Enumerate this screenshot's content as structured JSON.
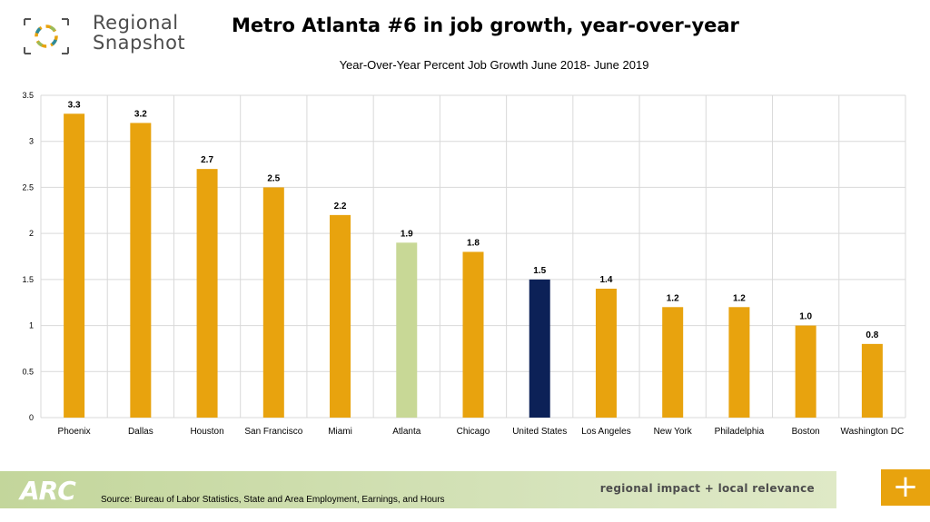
{
  "header": {
    "logo_text": "Regional\nSnapshot",
    "title": "Metro Atlanta #6 in job growth, year-over-year"
  },
  "footer": {
    "arc_logo": "ARC",
    "source": "Source: Bureau of Labor Statistics, State and Area Employment, Earnings, and Hours",
    "tagline": "regional impact + local relevance",
    "plus_icon": "+"
  },
  "colors": {
    "default_bar": "#e8a30e",
    "atlanta_bar": "#c8d896",
    "us_bar": "#0c2157",
    "grid": "#d9d9d9"
  },
  "chart_data": {
    "type": "bar",
    "title": "Year-Over-Year Percent Job Growth June 2018- June 2019",
    "categories": [
      "Phoenix",
      "Dallas",
      "Houston",
      "San Francisco",
      "Miami",
      "Atlanta",
      "Chicago",
      "United States",
      "Los Angeles",
      "New York",
      "Philadelphia",
      "Boston",
      "Washington DC"
    ],
    "values": [
      3.3,
      3.2,
      2.7,
      2.5,
      2.2,
      1.9,
      1.8,
      1.5,
      1.4,
      1.2,
      1.2,
      1.0,
      0.8
    ],
    "value_labels": [
      "3.3",
      "3.2",
      "2.7",
      "2.5",
      "2.2",
      "1.9",
      "1.8",
      "1.5",
      "1.4",
      "1.2",
      "1.2",
      "1.0",
      "0.8"
    ],
    "bar_colors": [
      "#e8a30e",
      "#e8a30e",
      "#e8a30e",
      "#e8a30e",
      "#e8a30e",
      "#c8d896",
      "#e8a30e",
      "#0c2157",
      "#e8a30e",
      "#e8a30e",
      "#e8a30e",
      "#e8a30e",
      "#e8a30e"
    ],
    "yticks": [
      "0",
      "0.5",
      "1",
      "1.5",
      "2",
      "2.5",
      "3",
      "3.5"
    ],
    "ylim": [
      0,
      3.5
    ],
    "xlabel": "",
    "ylabel": "",
    "grid": true,
    "legend": "none"
  }
}
